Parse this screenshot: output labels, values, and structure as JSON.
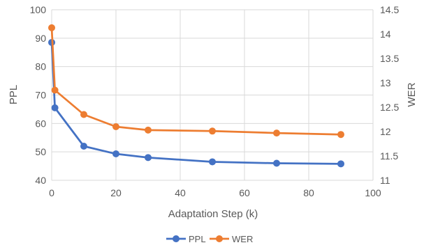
{
  "chart_data": {
    "type": "line",
    "title": "",
    "xlabel": "Adaptation Step (k)",
    "ylabel": "PPL",
    "y2label": "WER",
    "xlim": [
      0,
      100
    ],
    "ylim": [
      40,
      100
    ],
    "y2lim": [
      11,
      14.5
    ],
    "x_ticks": [
      "0",
      "20",
      "40",
      "60",
      "80",
      "100"
    ],
    "y_ticks": [
      "40",
      "50",
      "60",
      "70",
      "80",
      "90",
      "100"
    ],
    "y2_ticks": [
      "11",
      "11.5",
      "12",
      "12.5",
      "13",
      "13.5",
      "14",
      "14.5"
    ],
    "grid": true,
    "legend_position": "bottom",
    "series": [
      {
        "name": "PPL",
        "axis": "left",
        "color": "#4472C4",
        "x": [
          0,
          1,
          10,
          20,
          30,
          50,
          70,
          90
        ],
        "values": [
          88.5,
          65.5,
          52,
          49.3,
          48,
          46.5,
          46,
          45.8
        ]
      },
      {
        "name": "WER",
        "axis": "right",
        "color": "#ED7D31",
        "x": [
          0,
          1,
          10,
          20,
          30,
          50,
          70,
          90
        ],
        "values": [
          14.13,
          12.85,
          12.35,
          12.1,
          12.03,
          12.01,
          11.97,
          11.94
        ]
      }
    ]
  }
}
